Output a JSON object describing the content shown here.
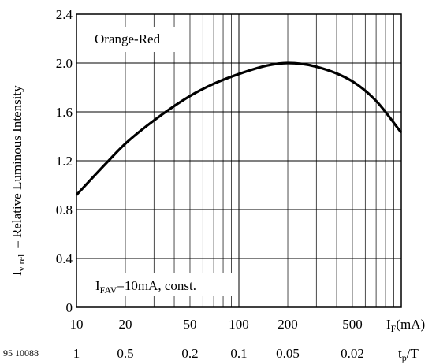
{
  "chart_data": {
    "type": "line",
    "x_scale": "log",
    "xlim": [
      10,
      1000
    ],
    "ylim": [
      0,
      2.4
    ],
    "ylabel_main": "I",
    "ylabel_sub": "v rel",
    "ylabel_rest": "– Relative Luminous Intensity",
    "yticks": [
      {
        "value": 0,
        "label": "0"
      },
      {
        "value": 0.4,
        "label": "0.4"
      },
      {
        "value": 0.8,
        "label": "0.8"
      },
      {
        "value": 1.2,
        "label": "1.2"
      },
      {
        "value": 1.6,
        "label": "1.6"
      },
      {
        "value": 2.0,
        "label": "2.0"
      },
      {
        "value": 2.4,
        "label": "2.4"
      }
    ],
    "xticks": [
      {
        "value": 10,
        "label": "10"
      },
      {
        "value": 20,
        "label": "20"
      },
      {
        "value": 50,
        "label": "50"
      },
      {
        "value": 100,
        "label": "100"
      },
      {
        "value": 200,
        "label": "200"
      },
      {
        "value": 500,
        "label": "500"
      }
    ],
    "xlabel_main": "I",
    "xlabel_sub": "F",
    "xlabel_rest": "(mA)",
    "secondary_xticks": [
      {
        "value": 10,
        "label": "1"
      },
      {
        "value": 20,
        "label": "0.5"
      },
      {
        "value": 50,
        "label": "0.2"
      },
      {
        "value": 100,
        "label": "0.1"
      },
      {
        "value": 200,
        "label": "0.05"
      },
      {
        "value": 500,
        "label": "0.02"
      }
    ],
    "secondary_xlabel_main": "t",
    "secondary_xlabel_sub": "p",
    "secondary_xlabel_rest": "/T",
    "figure_id": "95 10088",
    "series": [
      {
        "name": "Orange-Red",
        "x": [
          10,
          15,
          20,
          30,
          50,
          70,
          100,
          150,
          200,
          300,
          500,
          700,
          1000
        ],
        "y": [
          0.92,
          1.17,
          1.34,
          1.53,
          1.73,
          1.83,
          1.91,
          1.98,
          2.0,
          1.97,
          1.85,
          1.69,
          1.43
        ]
      }
    ],
    "annotation_main": "I",
    "annotation_sub": "FAV",
    "annotation_rest": "=10mA, const.",
    "grid": true
  }
}
